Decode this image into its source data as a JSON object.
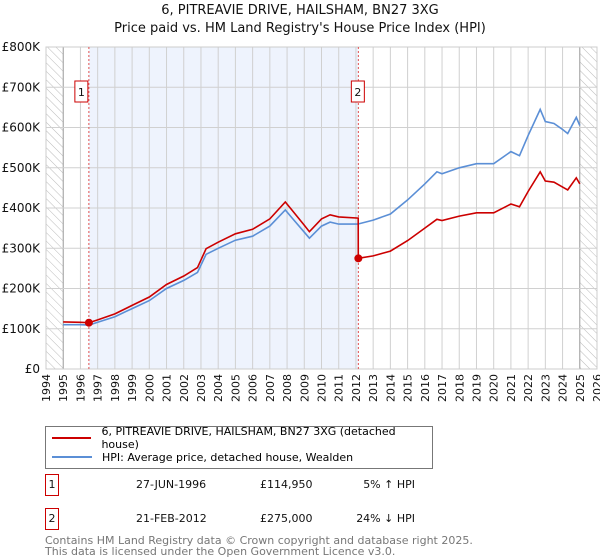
{
  "title": "6, PITREAVIE DRIVE, HAILSHAM, BN27 3XG",
  "subtitle": "Price paid vs. HM Land Registry's House Price Index (HPI)",
  "chart_data": {
    "type": "line",
    "title": "6, PITREAVIE DRIVE, HAILSHAM, BN27 3XG",
    "subtitle": "Price paid vs. HM Land Registry's House Price Index (HPI)",
    "xlim": [
      1994,
      2026
    ],
    "ylim": [
      0,
      800000
    ],
    "x_ticks": [
      "1994",
      "1995",
      "1996",
      "1997",
      "1998",
      "1999",
      "2000",
      "2001",
      "2002",
      "2003",
      "2004",
      "2005",
      "2006",
      "2007",
      "2008",
      "2009",
      "2010",
      "2011",
      "2012",
      "2013",
      "2014",
      "2015",
      "2016",
      "2017",
      "2018",
      "2019",
      "2020",
      "2021",
      "2022",
      "2023",
      "2024",
      "2025",
      "2026"
    ],
    "y_ticks": [
      {
        "v": 0,
        "label": "£0"
      },
      {
        "v": 100000,
        "label": "£100K"
      },
      {
        "v": 200000,
        "label": "£200K"
      },
      {
        "v": 300000,
        "label": "£300K"
      },
      {
        "v": 400000,
        "label": "£400K"
      },
      {
        "v": 500000,
        "label": "£500K"
      },
      {
        "v": 600000,
        "label": "£600K"
      },
      {
        "v": 700000,
        "label": "£700K"
      },
      {
        "v": 800000,
        "label": "£800K"
      }
    ],
    "grid": true,
    "legend_position": "below",
    "series": [
      {
        "name": "6, PITREAVIE DRIVE, HAILSHAM, BN27 3XG (detached house)",
        "color": "#cc0000",
        "x": [
          1995,
          1996,
          1996.49,
          1997,
          1998,
          1999,
          2000,
          2001,
          2002,
          2002.8,
          2003.3,
          2004,
          2005,
          2006,
          2007,
          2007.9,
          2008.3,
          2009,
          2009.3,
          2010,
          2010.5,
          2011,
          2012.13,
          2012.14,
          2013,
          2014,
          2015,
          2016,
          2016.7,
          2017,
          2018,
          2019,
          2020,
          2021,
          2021.5,
          2022,
          2022.7,
          2023,
          2023.5,
          2024,
          2024.3,
          2024.8,
          2025
        ],
        "y": [
          117000,
          116000,
          114950,
          122000,
          137000,
          158000,
          179000,
          210000,
          231000,
          252000,
          299000,
          315000,
          336000,
          347000,
          373000,
          415000,
          394000,
          357000,
          341000,
          373000,
          383000,
          378000,
          375000,
          275000,
          281000,
          293000,
          319000,
          350000,
          372000,
          369000,
          380000,
          388000,
          388000,
          410000,
          403000,
          441000,
          490000,
          467000,
          464000,
          452000,
          445000,
          475000,
          460000
        ]
      },
      {
        "name": "HPI: Average price, detached house, Wealden",
        "color": "#5b8fd6",
        "x": [
          1995,
          1996,
          1996.5,
          1997,
          1998,
          1999,
          2000,
          2001,
          2002,
          2002.8,
          2003.3,
          2004,
          2005,
          2006,
          2007,
          2007.9,
          2008.3,
          2009,
          2009.3,
          2010,
          2010.5,
          2011,
          2012.1,
          2013,
          2014,
          2015,
          2016,
          2016.7,
          2017,
          2018,
          2019,
          2020,
          2021,
          2021.5,
          2022,
          2022.7,
          2023,
          2023.5,
          2024,
          2024.3,
          2024.8,
          2025
        ],
        "y": [
          110000,
          110000,
          109000,
          116000,
          130000,
          150000,
          170000,
          200000,
          220000,
          240000,
          285000,
          300000,
          320000,
          330000,
          355000,
          395000,
          375000,
          340000,
          325000,
          355000,
          365000,
          360000,
          360000,
          370000,
          385000,
          420000,
          460000,
          490000,
          485000,
          500000,
          510000,
          510000,
          540000,
          530000,
          580000,
          645000,
          615000,
          610000,
          595000,
          585000,
          625000,
          605000
        ]
      }
    ],
    "sales": [
      {
        "label": "1",
        "x": 1996.49,
        "y": 114950
      },
      {
        "label": "2",
        "x": 2012.14,
        "y": 275000
      }
    ]
  },
  "legend": {
    "property": "6, PITREAVIE DRIVE, HAILSHAM, BN27 3XG (detached house)",
    "hpi": "HPI: Average price, detached house, Wealden"
  },
  "sales_table": [
    {
      "num": "1",
      "date": "27-JUN-1996",
      "price": "£114,950",
      "hpi": "5% ↑ HPI"
    },
    {
      "num": "2",
      "date": "21-FEB-2012",
      "price": "£275,000",
      "hpi": "24% ↓ HPI"
    }
  ],
  "footer": {
    "line1": "Contains HM Land Registry data © Crown copyright and database right 2025.",
    "line2": "This data is licensed under the Open Government Licence v3.0."
  }
}
